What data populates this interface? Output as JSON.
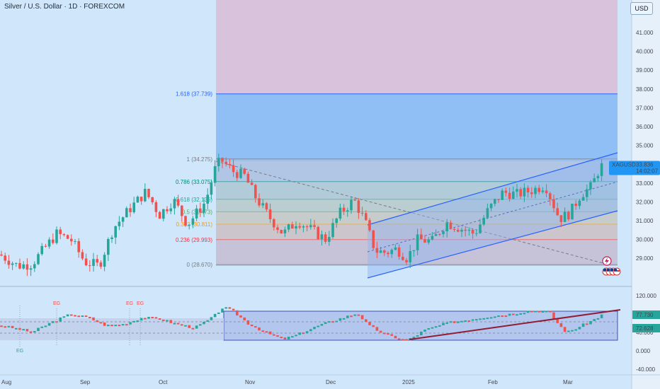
{
  "title": "Silver / U.S. Dollar · 1D · FOREXCOM",
  "currency": "USD",
  "price_ticks": [
    "41.000",
    "40.000",
    "39.000",
    "38.000",
    "37.000",
    "36.000",
    "35.000",
    "34.000",
    "33.000",
    "32.000",
    "31.000",
    "30.000",
    "29.000"
  ],
  "indicator_ticks": [
    "120.000",
    "80.000",
    "40.000",
    "0.000",
    "-40.000"
  ],
  "time_ticks": [
    "Aug",
    "Sep",
    "Oct",
    "Nov",
    "Dec",
    "2025",
    "Feb",
    "Mar"
  ],
  "fib_levels": [
    {
      "label": "1.618 (37.739)",
      "value": 37.739,
      "color": "#2962ff"
    },
    {
      "label": "1 (34.275)",
      "value": 34.275,
      "color": "#787b86"
    },
    {
      "label": "0.786 (33.075)",
      "value": 33.075,
      "color": "#00897b"
    },
    {
      "label": "0.618 (32.136)",
      "value": 32.136,
      "color": "#26a69a"
    },
    {
      "label": "0.5 (31.473)",
      "value": 31.473,
      "color": "#4caf50"
    },
    {
      "label": "0.382 (30.811)",
      "value": 30.811,
      "color": "#ff9800"
    },
    {
      "label": "0.236 (29.993)",
      "value": 29.993,
      "color": "#f23645"
    },
    {
      "label": "0 (28.670)",
      "value": 28.67,
      "color": "#787b86"
    }
  ],
  "price_label": {
    "symbol": "XAGUSD",
    "price": "33.836",
    "countdown": "14:02:07",
    "color": "#2196f3"
  },
  "indicator_labels": [
    {
      "value": "77.730",
      "color": "#26a69a"
    },
    {
      "value": "72.628",
      "color": "#26a69a"
    }
  ],
  "eg_markers": [
    "EG",
    "EG",
    "EG",
    "EG"
  ],
  "colors": {
    "up": "#26a69a",
    "down": "#ef5350"
  }
}
